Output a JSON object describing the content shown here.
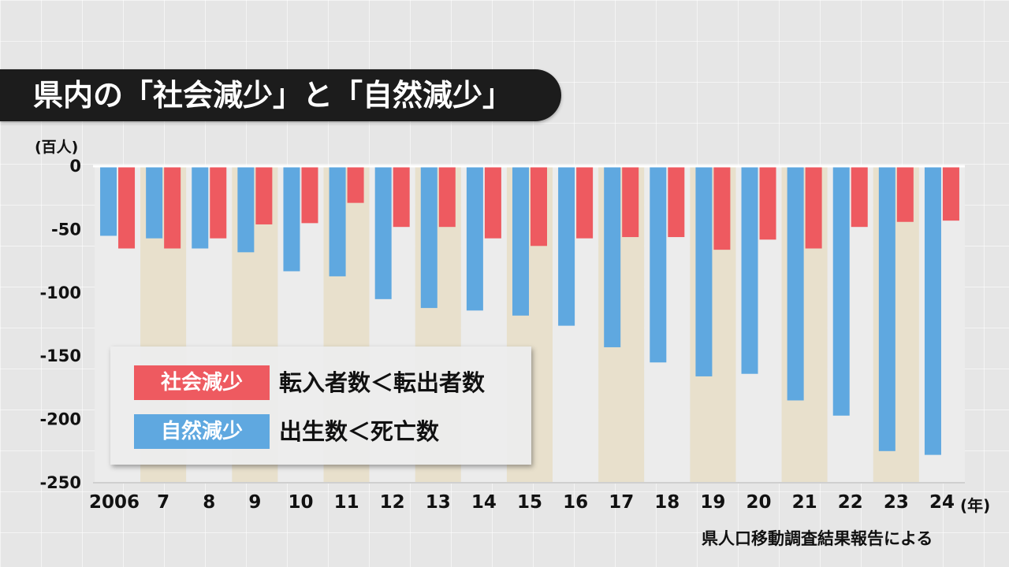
{
  "title": "県内の「社会減少」と「自然減少」",
  "source": "県人口移動調査結果報告による",
  "chart_data": {
    "type": "bar",
    "unit_label": "(百人)",
    "x_suffix": "(年)",
    "categories": [
      "2006",
      "7",
      "8",
      "9",
      "10",
      "11",
      "12",
      "13",
      "14",
      "15",
      "16",
      "17",
      "18",
      "19",
      "20",
      "21",
      "22",
      "23",
      "24"
    ],
    "yticks": [
      "0",
      "-50",
      "-100",
      "-150",
      "-200",
      "-250"
    ],
    "ylim": [
      -250,
      0
    ],
    "series": [
      {
        "name": "自然減少",
        "color": "#5fa8e0",
        "values": [
          -55,
          -57,
          -65,
          -68,
          -83,
          -87,
          -105,
          -112,
          -114,
          -118,
          -126,
          -143,
          -155,
          -166,
          -164,
          -185,
          -197,
          -225,
          -228
        ]
      },
      {
        "name": "社会減少",
        "color": "#ee5a60",
        "values": [
          -65,
          -65,
          -57,
          -46,
          -45,
          -29,
          -48,
          -48,
          -57,
          -63,
          -57,
          -56,
          -56,
          -66,
          -58,
          -65,
          -48,
          -44,
          -43
        ]
      }
    ],
    "legend": [
      {
        "label": "社会減少",
        "desc": "転入者数＜転出者数",
        "color": "#ee5a60"
      },
      {
        "label": "自然減少",
        "desc": "出生数＜死亡数",
        "color": "#5fa8e0"
      }
    ],
    "legend_position": "bottom-left",
    "band_colors": [
      "#ececec",
      "#e8e0cc"
    ]
  }
}
